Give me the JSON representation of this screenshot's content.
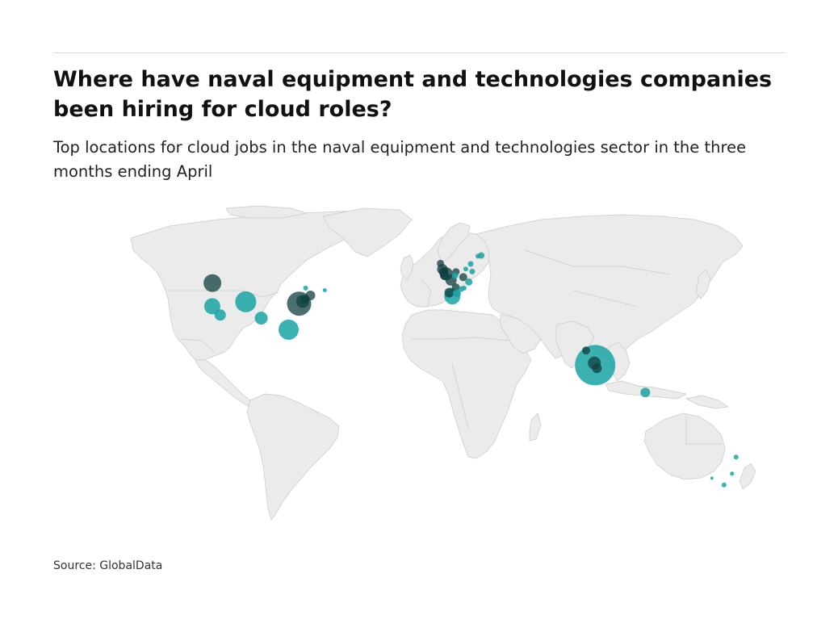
{
  "header": {
    "title": "Where have naval equipment and technologies companies been hiring for cloud roles?",
    "subtitle": "Top locations for cloud jobs in the naval equipment and technologies sector in the three months ending April"
  },
  "footer": {
    "source": "Source: GlobalData"
  },
  "colors": {
    "land": "#ebebeb",
    "border": "#c8c8c8",
    "bubble": "#1aa3a3",
    "bubble_dark": "#0f3f3f"
  },
  "chart_data": {
    "type": "bubble-map",
    "projection": "equirectangular",
    "markers": [
      {
        "lon": -122.3,
        "lat": 47.6,
        "size": 2.2,
        "dark": true
      },
      {
        "lon": -122.4,
        "lat": 37.8,
        "size": 2.0,
        "dark": false
      },
      {
        "lon": -118.2,
        "lat": 34.1,
        "size": 1.4,
        "dark": false
      },
      {
        "lon": -104.9,
        "lat": 39.7,
        "size": 2.6,
        "dark": false
      },
      {
        "lon": -96.8,
        "lat": 32.8,
        "size": 1.6,
        "dark": false
      },
      {
        "lon": -82.5,
        "lat": 27.9,
        "size": 2.5,
        "dark": false
      },
      {
        "lon": -77.0,
        "lat": 38.9,
        "size": 3.0,
        "dark": true
      },
      {
        "lon": -75.2,
        "lat": 39.9,
        "size": 1.6,
        "dark": true
      },
      {
        "lon": -74.0,
        "lat": 40.7,
        "size": 1.0,
        "dark": true
      },
      {
        "lon": -71.1,
        "lat": 42.4,
        "size": 1.2,
        "dark": true
      },
      {
        "lon": -73.6,
        "lat": 45.5,
        "size": 0.6,
        "dark": false
      },
      {
        "lon": -63.6,
        "lat": 44.6,
        "size": 0.5,
        "dark": false
      },
      {
        "lon": -3.2,
        "lat": 55.9,
        "size": 0.9,
        "dark": true
      },
      {
        "lon": -2.2,
        "lat": 53.5,
        "size": 1.3,
        "dark": true
      },
      {
        "lon": -1.5,
        "lat": 52.4,
        "size": 1.2,
        "dark": true
      },
      {
        "lon": -0.1,
        "lat": 51.5,
        "size": 1.6,
        "dark": true
      },
      {
        "lon": -1.1,
        "lat": 50.8,
        "size": 1.1,
        "dark": true
      },
      {
        "lon": 2.3,
        "lat": 48.9,
        "size": 1.4,
        "dark": true
      },
      {
        "lon": 4.9,
        "lat": 52.4,
        "size": 0.9,
        "dark": true
      },
      {
        "lon": 4.4,
        "lat": 50.8,
        "size": 0.8,
        "dark": false
      },
      {
        "lon": 8.7,
        "lat": 50.1,
        "size": 1.0,
        "dark": true
      },
      {
        "lon": 11.6,
        "lat": 48.1,
        "size": 0.9,
        "dark": false
      },
      {
        "lon": 13.4,
        "lat": 52.5,
        "size": 0.7,
        "dark": false
      },
      {
        "lon": 10.0,
        "lat": 53.6,
        "size": 0.6,
        "dark": false
      },
      {
        "lon": 12.6,
        "lat": 55.7,
        "size": 0.7,
        "dark": false
      },
      {
        "lon": 18.1,
        "lat": 59.3,
        "size": 0.8,
        "dark": false
      },
      {
        "lon": 16.4,
        "lat": 59.0,
        "size": 0.6,
        "dark": false
      },
      {
        "lon": 4.8,
        "lat": 45.8,
        "size": 1.0,
        "dark": true
      },
      {
        "lon": 5.4,
        "lat": 43.3,
        "size": 1.0,
        "dark": false
      },
      {
        "lon": 1.4,
        "lat": 43.6,
        "size": 1.2,
        "dark": true
      },
      {
        "lon": 3.0,
        "lat": 42.0,
        "size": 2.0,
        "dark": false
      },
      {
        "lon": 7.7,
        "lat": 45.1,
        "size": 0.7,
        "dark": false
      },
      {
        "lon": 9.2,
        "lat": 45.5,
        "size": 0.6,
        "dark": false
      },
      {
        "lon": 72.9,
        "lat": 19.1,
        "size": 1.0,
        "dark": true
      },
      {
        "lon": 77.6,
        "lat": 12.9,
        "size": 5.0,
        "dark": false
      },
      {
        "lon": 77.2,
        "lat": 13.8,
        "size": 1.6,
        "dark": true
      },
      {
        "lon": 78.5,
        "lat": 11.6,
        "size": 1.2,
        "dark": true
      },
      {
        "lon": 103.8,
        "lat": 1.35,
        "size": 1.2,
        "dark": false
      },
      {
        "lon": 151.2,
        "lat": -26.0,
        "size": 0.6,
        "dark": false
      },
      {
        "lon": 149.1,
        "lat": -33.0,
        "size": 0.5,
        "dark": false
      },
      {
        "lon": 144.9,
        "lat": -37.8,
        "size": 0.6,
        "dark": false
      },
      {
        "lon": 138.6,
        "lat": -34.9,
        "size": 0.4,
        "dark": false
      }
    ]
  }
}
